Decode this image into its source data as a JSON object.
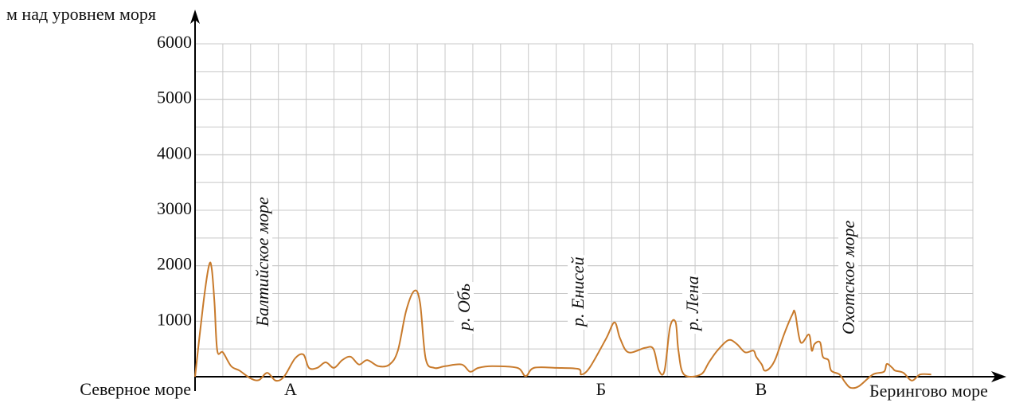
{
  "chart_data": {
    "type": "line",
    "y_label": "м над уровнем моря",
    "x_start_label": "Северное море",
    "x_end_label": "Берингово море",
    "annotations": [
      "Балтийское море",
      "р. Обь",
      "р. Енисей",
      "р. Лена",
      "Охотское море"
    ],
    "points": [
      "А",
      "Б",
      "В"
    ],
    "xlim": [
      0,
      28
    ],
    "ylim": [
      0,
      6000
    ],
    "yticks": [
      1000,
      2000,
      3000,
      4000,
      5000,
      6000
    ],
    "grid": true,
    "series": [
      {
        "color": "#c87a2b",
        "x": [
          0,
          0.3,
          0.5,
          0.6,
          0.7,
          0.8,
          1.0,
          1.3,
          1.6,
          2.0,
          2.3,
          2.6,
          2.9,
          3.2,
          3.6,
          3.9,
          4.1,
          4.4,
          4.7,
          5.0,
          5.3,
          5.6,
          5.9,
          6.2,
          6.6,
          7.0,
          7.3,
          7.6,
          7.9,
          8.1,
          8.3,
          8.6,
          9.0,
          9.6,
          9.9,
          10.2,
          10.7,
          11.6,
          11.9,
          12.2,
          13.0,
          13.8,
          13.9,
          14.2,
          14.8,
          15.1,
          15.3,
          15.6,
          16.2,
          16.5,
          16.7,
          16.9,
          17.1,
          17.3,
          17.4,
          17.6,
          18.2,
          18.5,
          18.8,
          19.2,
          19.5,
          19.8,
          20.1,
          20.2,
          20.4,
          20.5,
          20.7,
          20.9,
          21.2,
          21.5,
          21.6,
          21.8,
          22.1,
          22.2,
          22.3,
          22.5,
          22.6,
          22.8,
          22.9,
          23.2,
          23.4,
          23.6,
          23.9,
          24.4,
          24.8,
          24.9,
          25.1,
          25.2,
          25.5,
          25.8,
          26.1,
          26.5
        ],
        "values": [
          0,
          1330,
          2000,
          1950,
          1330,
          470,
          440,
          190,
          110,
          -30,
          -60,
          70,
          -70,
          0,
          330,
          400,
          160,
          160,
          260,
          160,
          300,
          360,
          220,
          300,
          190,
          220,
          470,
          1190,
          1550,
          1330,
          330,
          160,
          190,
          220,
          90,
          160,
          190,
          160,
          10,
          160,
          160,
          140,
          40,
          160,
          690,
          980,
          690,
          440,
          520,
          500,
          110,
          110,
          900,
          980,
          470,
          40,
          40,
          260,
          470,
          660,
          590,
          440,
          470,
          360,
          220,
          110,
          160,
          330,
          760,
          1120,
          1150,
          620,
          760,
          470,
          590,
          620,
          360,
          300,
          110,
          40,
          -100,
          -200,
          -170,
          40,
          90,
          230,
          160,
          110,
          70,
          -70,
          40,
          40
        ]
      }
    ]
  }
}
